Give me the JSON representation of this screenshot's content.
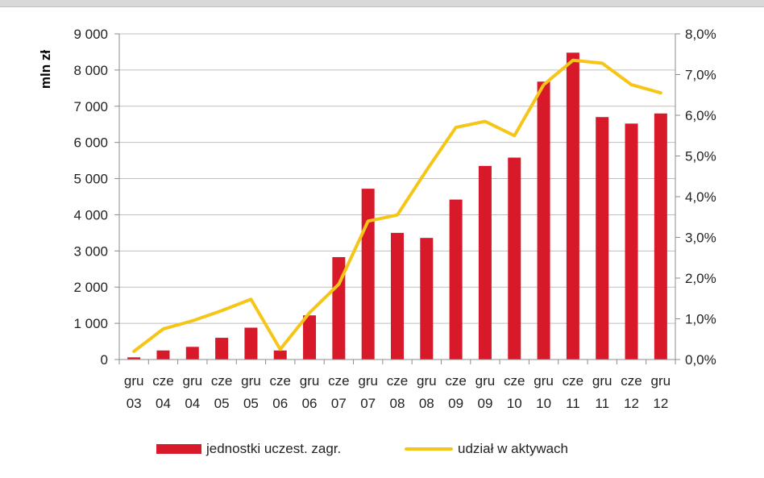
{
  "colors": {
    "bars": "#d7192a",
    "line": "#f5c518",
    "grid": "#bfbfbf",
    "axis": "#8c8c8c"
  },
  "chart_data": {
    "type": "bar",
    "title": "",
    "ylabel": "mln zł",
    "ylim": [
      0,
      9000
    ],
    "y2lim": [
      0,
      0.08
    ],
    "yticks": [
      "0",
      "1 000",
      "2 000",
      "3 000",
      "4 000",
      "5 000",
      "6 000",
      "7 000",
      "8 000",
      "9 000"
    ],
    "y2ticks": [
      "0,0%",
      "1,0%",
      "2,0%",
      "3,0%",
      "4,0%",
      "5,0%",
      "6,0%",
      "7,0%",
      "8,0%"
    ],
    "categories": [
      "gru 03",
      "cze 04",
      "gru 04",
      "cze 05",
      "gru 05",
      "cze 06",
      "gru 06",
      "cze 07",
      "gru 07",
      "cze 08",
      "gru 08",
      "cze 09",
      "gru 09",
      "cze 10",
      "gru 10",
      "cze 11",
      "gru 11",
      "cze 12",
      "gru 12"
    ],
    "category_lines": [
      [
        "gru",
        "03"
      ],
      [
        "cze",
        "04"
      ],
      [
        "gru",
        "04"
      ],
      [
        "cze",
        "05"
      ],
      [
        "gru",
        "05"
      ],
      [
        "cze",
        "06"
      ],
      [
        "gru",
        "06"
      ],
      [
        "cze",
        "07"
      ],
      [
        "gru",
        "07"
      ],
      [
        "cze",
        "08"
      ],
      [
        "gru",
        "08"
      ],
      [
        "cze",
        "09"
      ],
      [
        "gru",
        "09"
      ],
      [
        "cze",
        "10"
      ],
      [
        "gru",
        "10"
      ],
      [
        "cze",
        "11"
      ],
      [
        "gru",
        "11"
      ],
      [
        "cze",
        "12"
      ],
      [
        "gru",
        "12"
      ]
    ],
    "series": [
      {
        "name": "jednostki uczest. zagr.",
        "type": "bar",
        "axis": "left",
        "values": [
          60,
          250,
          350,
          600,
          880,
          250,
          1220,
          2830,
          4720,
          3500,
          3360,
          4420,
          5350,
          5580,
          7680,
          8480,
          6700,
          6520,
          6800
        ]
      },
      {
        "name": "udział w aktywach",
        "type": "line",
        "axis": "right",
        "values": [
          0.002,
          0.0075,
          0.0095,
          0.012,
          0.0148,
          0.0025,
          0.0115,
          0.0185,
          0.034,
          0.0355,
          0.0465,
          0.057,
          0.0585,
          0.055,
          0.0675,
          0.0735,
          0.0728,
          0.0675,
          0.0655
        ]
      }
    ],
    "grid": true,
    "legend_position": "bottom"
  }
}
